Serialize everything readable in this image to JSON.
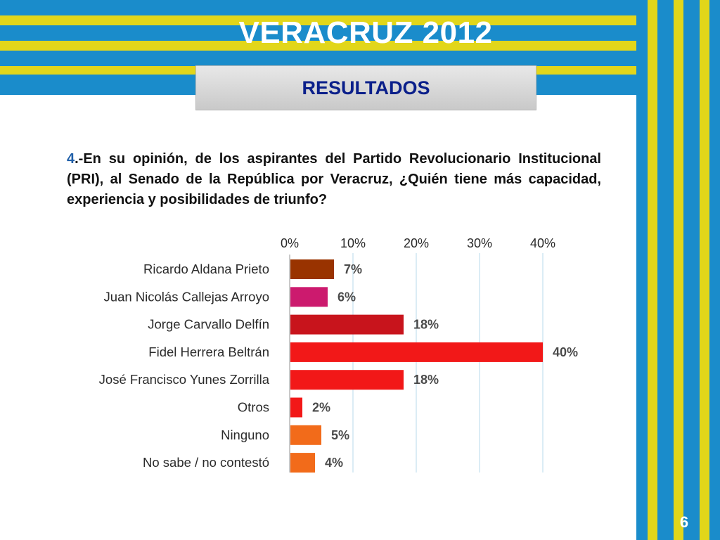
{
  "header": {
    "title": "VERACRUZ 2012",
    "subtitle": "RESULTADOS"
  },
  "question": {
    "number": "4",
    "text": ".-En su opinión, de los aspirantes del Partido Revolucionario Institucional (PRI), al Senado de la República por Veracruz, ¿Quién tiene más capacidad, experiencia y posibilidades de triunfo?"
  },
  "page_number": "6",
  "chart_data": {
    "type": "bar",
    "orientation": "horizontal",
    "categories": [
      "Ricardo Aldana Prieto",
      "Juan Nicolás Callejas Arroyo",
      "Jorge Carvallo Delfín",
      "Fidel Herrera Beltrán",
      "José Francisco Yunes Zorrilla",
      "Otros",
      "Ninguno",
      "No sabe / no contestó"
    ],
    "values": [
      7,
      6,
      18,
      40,
      18,
      2,
      5,
      4
    ],
    "value_labels": [
      "7%",
      "6%",
      "18%",
      "40%",
      "18%",
      "2%",
      "5%",
      "4%"
    ],
    "colors": [
      "#993300",
      "#cc1a6e",
      "#c8141c",
      "#f21818",
      "#f21818",
      "#f21818",
      "#f26b1a",
      "#f26b1a"
    ],
    "xlim": [
      0,
      40
    ],
    "xticks": [
      0,
      10,
      20,
      30,
      40
    ],
    "xtick_labels": [
      "0%",
      "10%",
      "20%",
      "30%",
      "40%"
    ],
    "xaxis_position": "top",
    "grid": true
  }
}
